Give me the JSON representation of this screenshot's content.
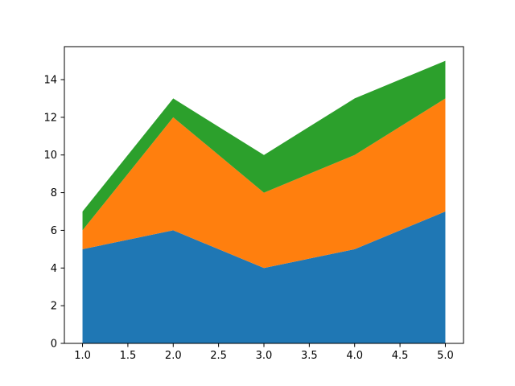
{
  "chart_data": {
    "type": "area",
    "stacked": true,
    "title": "",
    "xlabel": "",
    "ylabel": "",
    "x": [
      1,
      2,
      3,
      4,
      5
    ],
    "series": [
      {
        "values": [
          5,
          6,
          4,
          5,
          7
        ],
        "color": "#1f77b4"
      },
      {
        "values": [
          1,
          6,
          4,
          5,
          6
        ],
        "color": "#ff7f0e"
      },
      {
        "values": [
          1,
          1,
          2,
          3,
          2
        ],
        "color": "#2ca02c"
      }
    ],
    "xlim": [
      0.8,
      5.2
    ],
    "ylim": [
      0,
      15.75
    ],
    "xticks": [
      1.0,
      1.5,
      2.0,
      2.5,
      3.0,
      3.5,
      4.0,
      4.5,
      5.0
    ],
    "xtick_labels": [
      "1.0",
      "1.5",
      "2.0",
      "2.5",
      "3.0",
      "3.5",
      "4.0",
      "4.5",
      "5.0"
    ],
    "yticks": [
      0,
      2,
      4,
      6,
      8,
      10,
      12,
      14
    ],
    "ytick_labels": [
      "0",
      "2",
      "4",
      "6",
      "8",
      "10",
      "12",
      "14"
    ],
    "grid": false,
    "legend": false
  }
}
